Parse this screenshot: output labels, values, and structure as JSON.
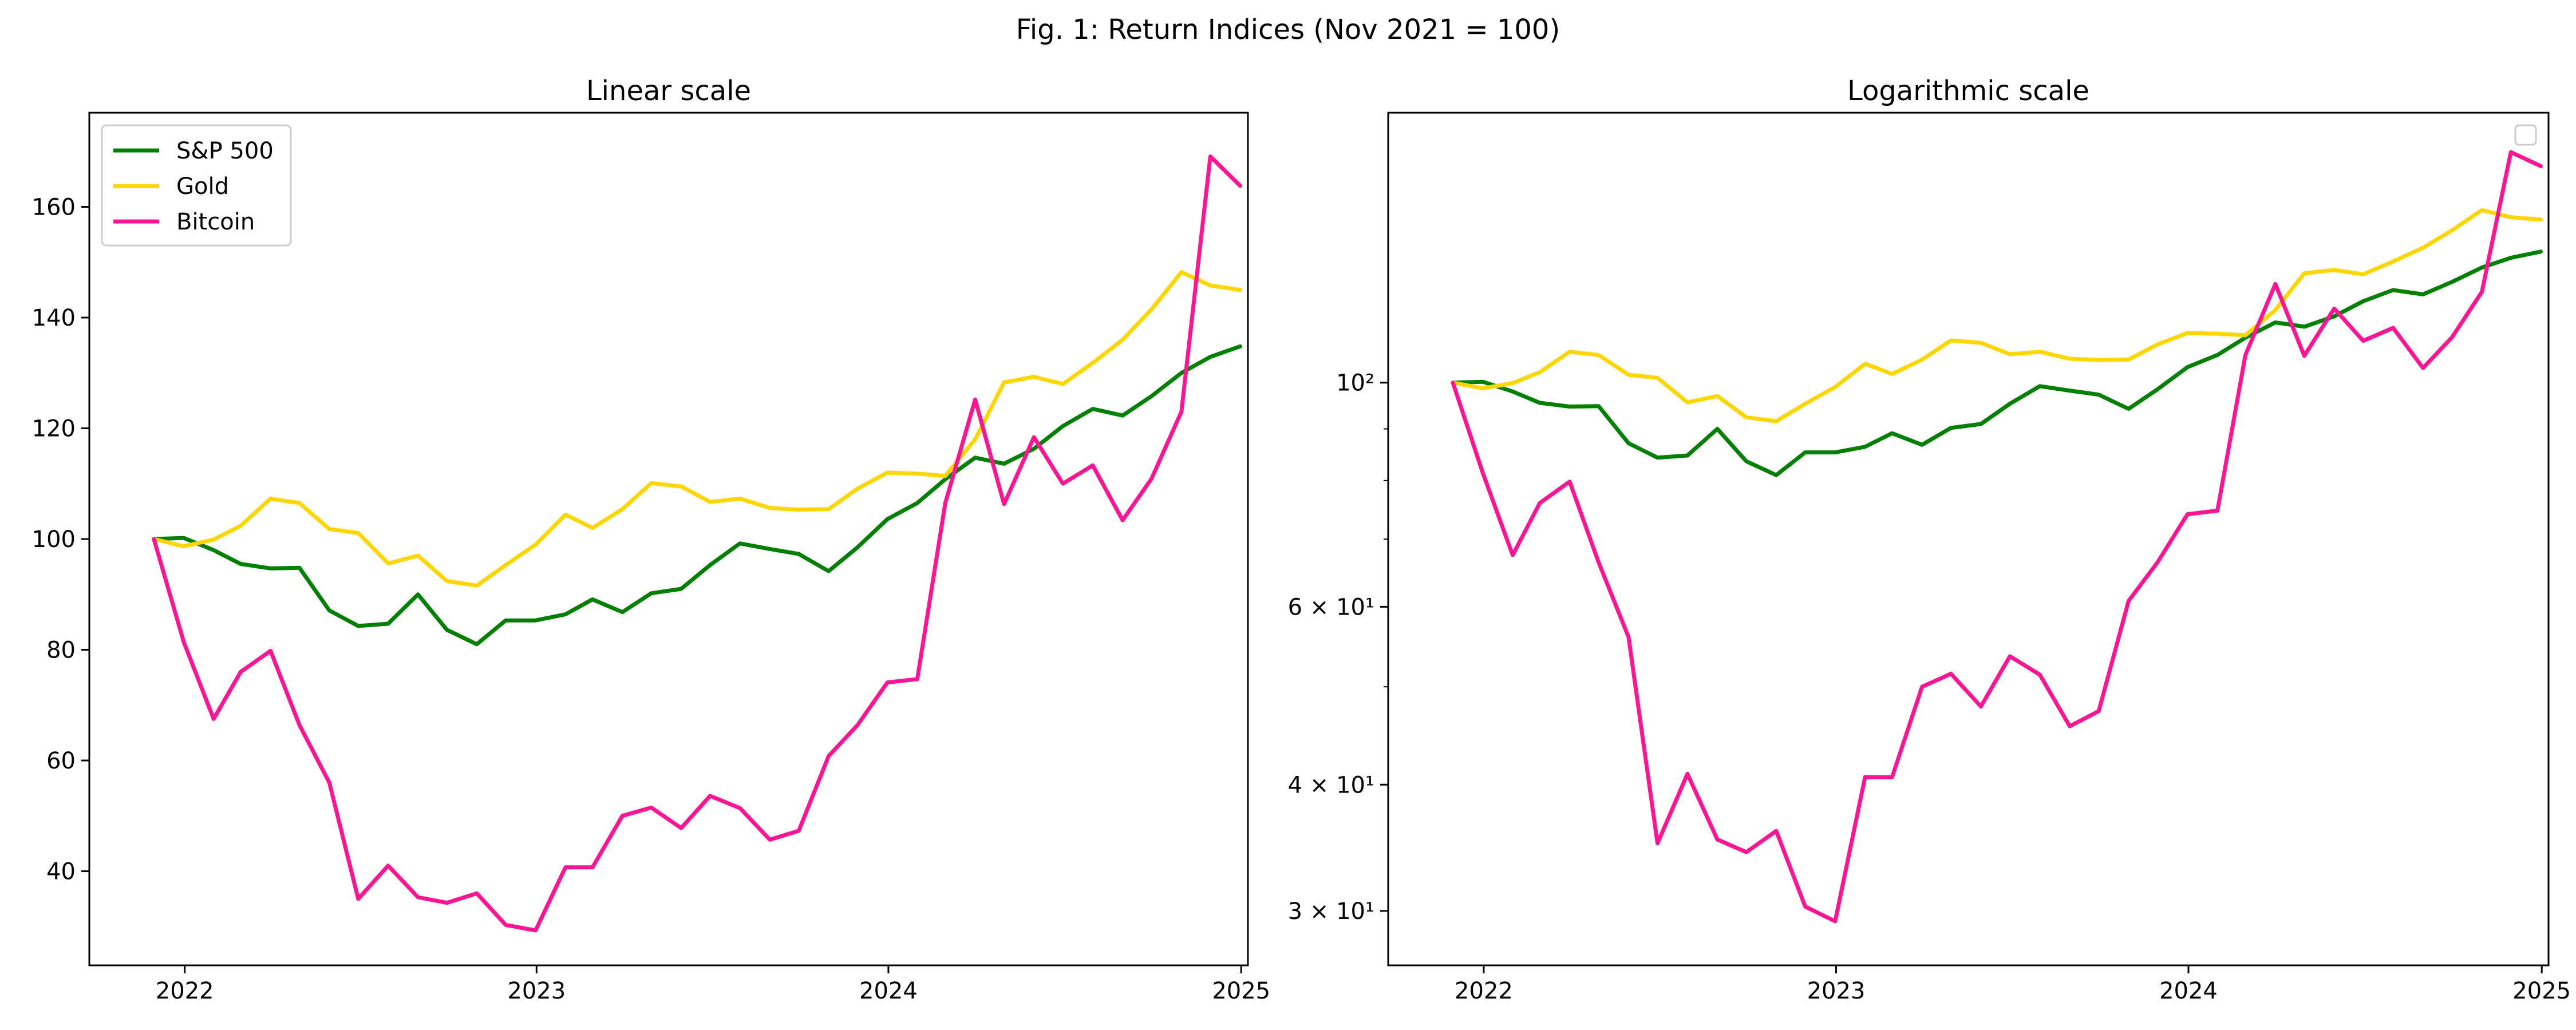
{
  "figure_title": "Fig. 1: Return Indices (Nov 2021 = 100)",
  "colors": {
    "sp500": "#008000",
    "gold": "#FFD700",
    "bitcoin": "#FF1493"
  },
  "chart_data": [
    {
      "type": "line",
      "title": "Linear scale",
      "xlabel": "",
      "ylabel": "",
      "yscale": "linear",
      "xlim": [
        "2021-09-24",
        "2025-01-08"
      ],
      "ylim": [
        23,
        177
      ],
      "xticks": [
        "2022-01-01",
        "2023-01-01",
        "2024-01-01",
        "2025-01-01"
      ],
      "xtick_labels": [
        "2022",
        "2023",
        "2024",
        "2025"
      ],
      "yticks": [
        40,
        60,
        80,
        100,
        120,
        140,
        160
      ],
      "ytick_labels": [
        "40",
        "60",
        "80",
        "100",
        "120",
        "140",
        "160"
      ],
      "grid": false,
      "legend": "upper-left",
      "x": [
        "2021-11-30",
        "2021-12-31",
        "2022-01-31",
        "2022-02-28",
        "2022-03-31",
        "2022-04-30",
        "2022-05-31",
        "2022-06-30",
        "2022-07-31",
        "2022-08-31",
        "2022-09-30",
        "2022-10-31",
        "2022-11-30",
        "2022-12-31",
        "2023-01-31",
        "2023-02-28",
        "2023-03-31",
        "2023-04-30",
        "2023-05-31",
        "2023-06-30",
        "2023-07-31",
        "2023-08-31",
        "2023-09-30",
        "2023-10-31",
        "2023-11-30",
        "2023-12-31",
        "2024-01-31",
        "2024-02-29",
        "2024-03-31",
        "2024-04-30",
        "2024-05-31",
        "2024-06-30",
        "2024-07-31",
        "2024-08-31",
        "2024-09-30",
        "2024-10-31",
        "2024-11-30",
        "2024-12-31"
      ],
      "series": [
        {
          "name": "S&P 500",
          "color_key": "sp500",
          "values": [
            100,
            100.2,
            98,
            95.5,
            94.7,
            94.8,
            87.1,
            84.3,
            84.7,
            90,
            83.6,
            81,
            85.3,
            85.3,
            86.4,
            89.1,
            86.8,
            90.2,
            91,
            95.3,
            99.2,
            98.2,
            97.3,
            94.2,
            98.5,
            103.6,
            106.5,
            110.8,
            114.7,
            113.6,
            116.3,
            120.4,
            123.5,
            122.3,
            125.8,
            130,
            132.9,
            134.8
          ]
        },
        {
          "name": "Gold",
          "color_key": "gold",
          "values": [
            100,
            98.7,
            99.9,
            102.4,
            107.3,
            106.5,
            101.8,
            101.1,
            95.6,
            97,
            92.4,
            91.6,
            95.3,
            99,
            104.4,
            102,
            105.4,
            110.1,
            109.5,
            106.7,
            107.3,
            105.6,
            105.3,
            105.4,
            109.1,
            112,
            111.8,
            111.4,
            118,
            128.3,
            129.3,
            128,
            131.8,
            136,
            141.5,
            148.2,
            145.8,
            145
          ]
        },
        {
          "name": "Bitcoin",
          "color_key": "bitcoin",
          "values": [
            100,
            81.4,
            67.5,
            76,
            79.8,
            66.4,
            56,
            35,
            41,
            35.3,
            34.3,
            36,
            30.3,
            29.3,
            40.7,
            40.7,
            50,
            51.5,
            47.8,
            53.6,
            51.4,
            45.7,
            47.3,
            60.8,
            66.4,
            74.1,
            74.7,
            106.5,
            125.2,
            106.3,
            118.4,
            110,
            113.3,
            103.4,
            110.9,
            123,
            169.1,
            163.8
          ]
        }
      ]
    },
    {
      "type": "line",
      "title": "Logarithmic scale",
      "xlabel": "",
      "ylabel": "",
      "yscale": "log",
      "xlim": [
        "2021-09-24",
        "2025-01-08"
      ],
      "ylim": [
        26.5,
        185
      ],
      "xticks": [
        "2022-01-01",
        "2023-01-01",
        "2024-01-01",
        "2025-01-01"
      ],
      "xtick_labels": [
        "2022",
        "2023",
        "2024",
        "2025"
      ],
      "yticks_major": [
        30,
        40,
        60,
        100
      ],
      "ytick_labels": [
        "3 × 10¹",
        "4 × 10¹",
        "6 × 10¹",
        "10²"
      ],
      "yticks_minor": [
        50,
        70,
        80,
        90
      ],
      "grid": false,
      "legend": "upper-right (empty)",
      "x": [
        "2021-11-30",
        "2021-12-31",
        "2022-01-31",
        "2022-02-28",
        "2022-03-31",
        "2022-04-30",
        "2022-05-31",
        "2022-06-30",
        "2022-07-31",
        "2022-08-31",
        "2022-09-30",
        "2022-10-31",
        "2022-11-30",
        "2022-12-31",
        "2023-01-31",
        "2023-02-28",
        "2023-03-31",
        "2023-04-30",
        "2023-05-31",
        "2023-06-30",
        "2023-07-31",
        "2023-08-31",
        "2023-09-30",
        "2023-10-31",
        "2023-11-30",
        "2023-12-31",
        "2024-01-31",
        "2024-02-29",
        "2024-03-31",
        "2024-04-30",
        "2024-05-31",
        "2024-06-30",
        "2024-07-31",
        "2024-08-31",
        "2024-09-30",
        "2024-10-31",
        "2024-11-30",
        "2024-12-31"
      ],
      "series": [
        {
          "color_key": "sp500",
          "values": [
            100,
            100.2,
            98,
            95.5,
            94.7,
            94.8,
            87.1,
            84.3,
            84.7,
            90,
            83.6,
            81,
            85.3,
            85.3,
            86.4,
            89.1,
            86.8,
            90.2,
            91,
            95.3,
            99.2,
            98.2,
            97.3,
            94.2,
            98.5,
            103.6,
            106.5,
            110.8,
            114.7,
            113.6,
            116.3,
            120.4,
            123.5,
            122.3,
            125.8,
            130,
            132.9,
            134.8
          ]
        },
        {
          "color_key": "gold",
          "values": [
            100,
            98.7,
            99.9,
            102.4,
            107.3,
            106.5,
            101.8,
            101.1,
            95.6,
            97,
            92.4,
            91.6,
            95.3,
            99,
            104.4,
            102,
            105.4,
            110.1,
            109.5,
            106.7,
            107.3,
            105.6,
            105.3,
            105.4,
            109.1,
            112,
            111.8,
            111.4,
            118,
            128.3,
            129.3,
            128,
            131.8,
            136,
            141.5,
            148.2,
            145.8,
            145
          ]
        },
        {
          "color_key": "bitcoin",
          "values": [
            100,
            81.4,
            67.5,
            76,
            79.8,
            66.4,
            56,
            35,
            41,
            35.3,
            34.3,
            36,
            30.3,
            29.3,
            40.7,
            40.7,
            50,
            51.5,
            47.8,
            53.6,
            51.4,
            45.7,
            47.3,
            60.8,
            66.4,
            74.1,
            74.7,
            106.5,
            125.2,
            106.3,
            118.4,
            110,
            113.3,
            103.4,
            110.9,
            123,
            169.1,
            163.8
          ]
        }
      ]
    }
  ]
}
